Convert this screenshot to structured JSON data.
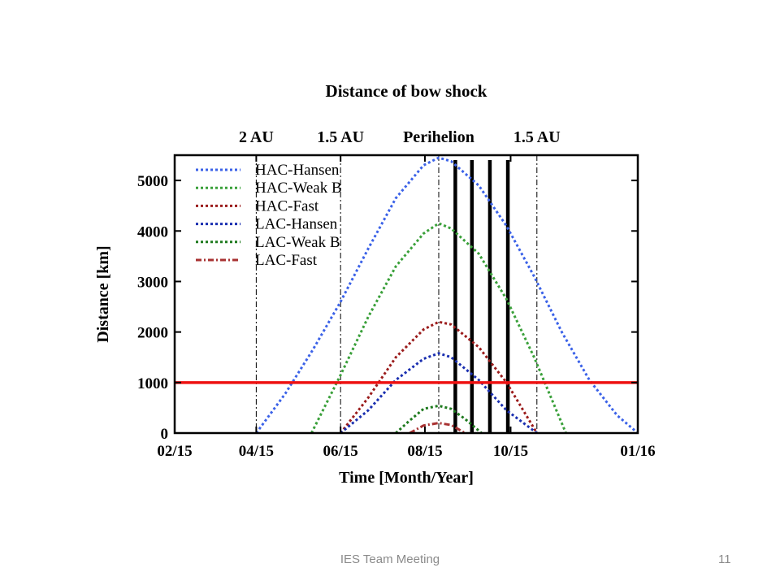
{
  "slide": {
    "footer_text": "IES Team Meeting",
    "page_number": "11"
  },
  "chart_data": {
    "type": "line",
    "title": "Distance of bow shock",
    "xlabel": "Time [Month/Year]",
    "ylabel": "Distance [km]",
    "x_unit": "days since 02/15",
    "xlim": [
      0,
      335
    ],
    "ylim": [
      0,
      5500
    ],
    "x_ticks": [
      {
        "label": "02/15",
        "x": 0
      },
      {
        "label": "04/15",
        "x": 59
      },
      {
        "label": "06/15",
        "x": 120
      },
      {
        "label": "08/15",
        "x": 181
      },
      {
        "label": "10/15",
        "x": 243
      },
      {
        "label": "01/16",
        "x": 335
      }
    ],
    "y_ticks": [
      0,
      1000,
      2000,
      3000,
      4000,
      5000
    ],
    "top_labels": [
      {
        "label": "2 AU",
        "x": 59
      },
      {
        "label": "1.5 AU",
        "x": 120
      },
      {
        "label": "Perihelion",
        "x": 191
      },
      {
        "label": "1.5 AU",
        "x": 262
      }
    ],
    "series": [
      {
        "name": "HAC-Hansen",
        "color": "#3b62e8",
        "style": "dotted",
        "x": [
          59,
          80,
          100,
          120,
          140,
          160,
          180,
          191,
          200,
          220,
          240,
          260,
          280,
          300,
          320,
          335
        ],
        "y": [
          0,
          780,
          1650,
          2600,
          3650,
          4650,
          5300,
          5450,
          5380,
          4900,
          4100,
          3100,
          2000,
          1050,
          350,
          0
        ]
      },
      {
        "name": "HAC-Weak B",
        "color": "#3aa03a",
        "style": "dotted",
        "x": [
          99,
          120,
          140,
          160,
          180,
          191,
          200,
          220,
          240,
          260,
          283
        ],
        "y": [
          0,
          1150,
          2300,
          3300,
          3950,
          4150,
          4050,
          3550,
          2650,
          1500,
          0
        ]
      },
      {
        "name": "HAC-Fast",
        "color": "#9b1c1c",
        "style": "dotted",
        "x": [
          120,
          140,
          160,
          180,
          191,
          200,
          220,
          240,
          262
        ],
        "y": [
          0,
          700,
          1500,
          2050,
          2200,
          2150,
          1700,
          1000,
          0
        ]
      },
      {
        "name": "LAC-Hansen",
        "color": "#1a2fb0",
        "style": "dotted",
        "x": [
          120,
          140,
          160,
          180,
          191,
          200,
          220,
          240,
          262
        ],
        "y": [
          0,
          450,
          1050,
          1470,
          1580,
          1500,
          1050,
          450,
          0
        ]
      },
      {
        "name": "LAC-Weak B",
        "color": "#1e7a1e",
        "style": "dotted",
        "x": [
          160,
          170,
          180,
          191,
          200,
          210,
          222
        ],
        "y": [
          0,
          250,
          480,
          540,
          480,
          280,
          0
        ]
      },
      {
        "name": "LAC-Fast",
        "color": "#a83232",
        "style": "dash-dot",
        "x": [
          170,
          180,
          191,
          200,
          210
        ],
        "y": [
          0,
          150,
          200,
          160,
          0
        ]
      }
    ],
    "reference_line": {
      "y": 1000,
      "color": "#ee1111"
    },
    "thin_vertical_lines_x": [
      59,
      120,
      191,
      262
    ],
    "thick_vertical_lines_x": [
      203,
      215,
      228,
      241
    ],
    "legend_position": "top-left",
    "grid": false
  }
}
